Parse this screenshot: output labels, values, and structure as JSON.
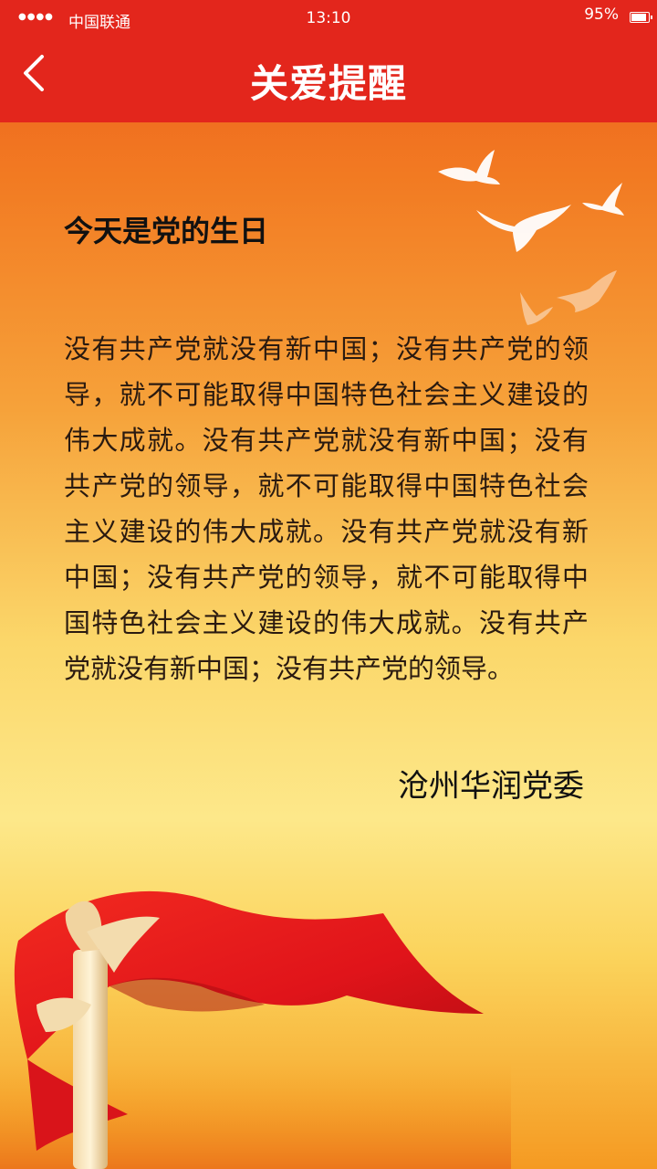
{
  "status_bar": {
    "signal": "●●●●",
    "carrier": "中国联通",
    "time": "13:10",
    "battery_percent": "95%",
    "battery_level": 0.95
  },
  "nav": {
    "back_icon": "chevron-left-icon",
    "title": "关爱提醒"
  },
  "content": {
    "title": "今天是党的生日",
    "body": "没有共产党就没有新中国；没有共产党的领导，就不可能取得中国特色社会主义建设的伟大成就。没有共产党就没有新中国；没有共产党的领导，就不可能取得中国特色社会主义建设的伟大成就。没有共产党就没有新中国；没有共产党的领导，就不可能取得中国特色社会主义建设的伟大成就。没有共产党就没有新中国；没有共产党的领导。",
    "signature": "沧州华润党委"
  },
  "colors": {
    "header_red": "#e3261c",
    "flag_red": "#e8141c"
  }
}
